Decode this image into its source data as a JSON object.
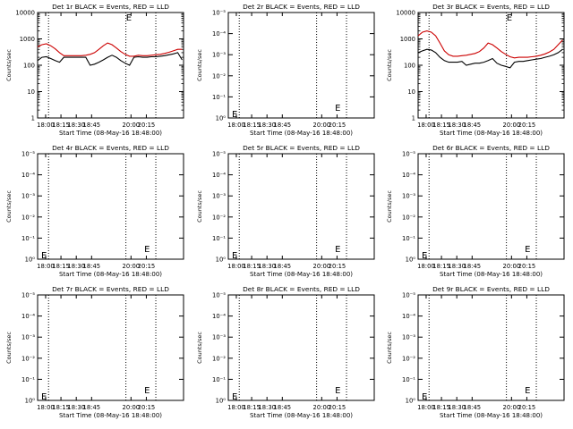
{
  "chart_data": [
    {
      "type": "line",
      "title": "Det 1r BLACK = Events, RED = LLD",
      "xlabel": "Start Time (08-May-16 18:48:00)",
      "ylabel": "Counts/sec",
      "x_ticks": [
        "18:00",
        "18:15",
        "18:30",
        "18:45",
        "20:00",
        "20:15"
      ],
      "y_ticks": [
        "1",
        "10",
        "100",
        "1000",
        "10000"
      ],
      "ylim": [
        1,
        10000
      ],
      "yscale": "log",
      "marker_label": "E",
      "series": [
        {
          "color": "#000000",
          "x": [
            0,
            3,
            6,
            9,
            12,
            15,
            18,
            21,
            24,
            27,
            30,
            33,
            36,
            39,
            42,
            45,
            48,
            51,
            54,
            57,
            60,
            63,
            66,
            69,
            72,
            75,
            78,
            81,
            84,
            87,
            90,
            93,
            96,
            99
          ],
          "values": [
            150,
            200,
            210,
            180,
            150,
            130,
            200,
            200,
            200,
            200,
            200,
            200,
            100,
            110,
            130,
            160,
            200,
            240,
            200,
            150,
            120,
            100,
            200,
            210,
            200,
            200,
            210,
            210,
            220,
            230,
            250,
            270,
            300,
            160
          ]
        },
        {
          "color": "#cc0000",
          "x": [
            0,
            3,
            6,
            9,
            12,
            15,
            18,
            21,
            24,
            27,
            30,
            33,
            36,
            39,
            42,
            45,
            48,
            51,
            54,
            57,
            60,
            63,
            66,
            69,
            72,
            75,
            78,
            81,
            84,
            87,
            90,
            93,
            96,
            99
          ],
          "values": [
            500,
            600,
            650,
            550,
            420,
            300,
            230,
            230,
            230,
            230,
            230,
            240,
            260,
            300,
            400,
            550,
            700,
            600,
            450,
            330,
            260,
            220,
            220,
            240,
            230,
            230,
            240,
            250,
            260,
            280,
            310,
            350,
            400,
            400
          ]
        }
      ]
    },
    {
      "type": "line",
      "title": "Det 2r BLACK = Events, RED = LLD",
      "xlabel": "Start Time (08-May-16 18:48:00)",
      "ylabel": "Counts/sec",
      "x_ticks": [
        "18:00",
        "18:15",
        "18:30",
        "18:45",
        "20:00",
        "20:15"
      ],
      "y_ticks": [
        "10⁰",
        "10⁻¹",
        "10⁻²",
        "10⁻³",
        "10⁻⁴",
        "10⁻⁵"
      ],
      "yscale": "log",
      "marker_label": "E",
      "series": []
    },
    {
      "type": "line",
      "title": "Det 3r BLACK = Events, RED = LLD",
      "xlabel": "Start Time (08-May-16 18:48:00)",
      "ylabel": "Counts/sec",
      "x_ticks": [
        "18:00",
        "18:15",
        "18:30",
        "18:45",
        "20:00",
        "20:15"
      ],
      "y_ticks": [
        "1",
        "10",
        "100",
        "1000",
        "10000"
      ],
      "ylim": [
        1,
        10000
      ],
      "yscale": "log",
      "marker_label": "E",
      "series": [
        {
          "color": "#000000",
          "x": [
            0,
            3,
            6,
            9,
            12,
            15,
            18,
            21,
            24,
            27,
            30,
            33,
            36,
            39,
            42,
            45,
            48,
            51,
            54,
            57,
            60,
            63,
            66,
            69,
            72,
            75,
            78,
            81,
            84,
            87,
            90,
            93,
            96,
            99
          ],
          "values": [
            300,
            350,
            400,
            380,
            300,
            200,
            150,
            130,
            130,
            130,
            140,
            100,
            110,
            120,
            120,
            130,
            150,
            180,
            120,
            100,
            90,
            80,
            130,
            140,
            140,
            150,
            160,
            170,
            180,
            200,
            220,
            250,
            300,
            400
          ]
        },
        {
          "color": "#cc0000",
          "x": [
            0,
            3,
            6,
            9,
            12,
            15,
            18,
            21,
            24,
            27,
            30,
            33,
            36,
            39,
            42,
            45,
            48,
            51,
            54,
            57,
            60,
            63,
            66,
            69,
            72,
            75,
            78,
            81,
            84,
            87,
            90,
            93,
            96,
            99
          ],
          "values": [
            1300,
            1800,
            2000,
            1800,
            1300,
            700,
            350,
            250,
            220,
            220,
            230,
            240,
            260,
            280,
            330,
            450,
            700,
            600,
            450,
            330,
            260,
            210,
            190,
            200,
            200,
            200,
            210,
            220,
            240,
            270,
            320,
            400,
            600,
            900
          ]
        }
      ]
    },
    {
      "type": "line",
      "title": "Det 4r BLACK = Events, RED = LLD",
      "xlabel": "Start Time (08-May-16 18:48:00)",
      "ylabel": "Counts/sec",
      "x_ticks": [
        "18:00",
        "18:15",
        "18:30",
        "18:45",
        "20:00",
        "20:15"
      ],
      "y_ticks": [
        "10⁰",
        "10⁻¹",
        "10⁻²",
        "10⁻³",
        "10⁻⁴",
        "10⁻⁵"
      ],
      "yscale": "log",
      "marker_label": "E",
      "series": []
    },
    {
      "type": "line",
      "title": "Det 5r BLACK = Events, RED = LLD",
      "xlabel": "Start Time (08-May-16 18:48:00)",
      "ylabel": "Counts/sec",
      "x_ticks": [
        "18:00",
        "18:15",
        "18:30",
        "18:45",
        "20:00",
        "20:15"
      ],
      "y_ticks": [
        "10⁰",
        "10⁻¹",
        "10⁻²",
        "10⁻³",
        "10⁻⁴",
        "10⁻⁵"
      ],
      "yscale": "log",
      "marker_label": "E",
      "series": []
    },
    {
      "type": "line",
      "title": "Det 6r BLACK = Events, RED = LLD",
      "xlabel": "Start Time (08-May-16 18:48:00)",
      "ylabel": "Counts/sec",
      "x_ticks": [
        "18:00",
        "18:15",
        "18:30",
        "18:45",
        "20:00",
        "20:15"
      ],
      "y_ticks": [
        "10⁰",
        "10⁻¹",
        "10⁻²",
        "10⁻³",
        "10⁻⁴",
        "10⁻⁵"
      ],
      "yscale": "log",
      "marker_label": "E",
      "series": []
    },
    {
      "type": "line",
      "title": "Det 7r BLACK = Events, RED = LLD",
      "xlabel": "Start Time (08-May-16 18:48:00)",
      "ylabel": "Counts/sec",
      "x_ticks": [
        "18:00",
        "18:15",
        "18:30",
        "18:45",
        "20:00",
        "20:15"
      ],
      "y_ticks": [
        "10⁰",
        "10⁻¹",
        "10⁻²",
        "10⁻³",
        "10⁻⁴",
        "10⁻⁵"
      ],
      "yscale": "log",
      "marker_label": "E",
      "series": []
    },
    {
      "type": "line",
      "title": "Det 8r BLACK = Events, RED = LLD",
      "xlabel": "Start Time (08-May-16 18:48:00)",
      "ylabel": "Counts/sec",
      "x_ticks": [
        "18:00",
        "18:15",
        "18:30",
        "18:45",
        "20:00",
        "20:15"
      ],
      "y_ticks": [
        "10⁰",
        "10⁻¹",
        "10⁻²",
        "10⁻³",
        "10⁻⁴",
        "10⁻⁵"
      ],
      "yscale": "log",
      "marker_label": "E",
      "series": []
    },
    {
      "type": "line",
      "title": "Det 9r BLACK = Events, RED = LLD",
      "xlabel": "Start Time (08-May-16 18:48:00)",
      "ylabel": "Counts/sec",
      "x_ticks": [
        "18:00",
        "18:15",
        "18:30",
        "18:45",
        "20:00",
        "20:15"
      ],
      "y_ticks": [
        "10⁰",
        "10⁻¹",
        "10⁻²",
        "10⁻³",
        "10⁻⁴",
        "10⁻⁵"
      ],
      "yscale": "log",
      "marker_label": "E",
      "series": []
    }
  ]
}
